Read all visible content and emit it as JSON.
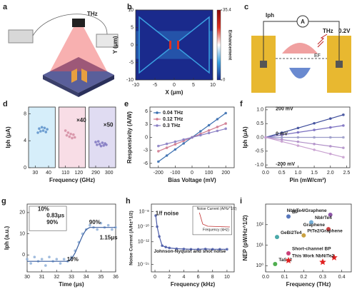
{
  "panels": {
    "a": {
      "label": "a",
      "texts": [
        "THz"
      ]
    },
    "c": {
      "label": "c",
      "texts": [
        "Iph",
        "A",
        "THz",
        "0.2V",
        "EF"
      ]
    }
  },
  "chart_data": [
    {
      "label": "b",
      "type": "heatmap",
      "xlabel": "X (μm)",
      "ylabel": "Y (μm)",
      "xlim": [
        -10,
        10
      ],
      "ylim": [
        -10,
        10
      ],
      "xticks": [
        -10,
        -5,
        0,
        5,
        10
      ],
      "yticks": [
        -10,
        -5,
        0,
        5,
        10
      ],
      "clim": [
        0,
        35.4
      ],
      "cticks": [
        0,
        35.4
      ],
      "colorbar_label": "Enhancement",
      "colors": [
        "#1a2a8c",
        "#3aa0e0",
        "#ffffff",
        "#e03020",
        "#8a0a0a"
      ]
    },
    {
      "label": "d",
      "type": "scatter",
      "xlabel": "Frequency (GHz)",
      "ylabel": "Iph (μA)",
      "xlim": [
        [
          25,
          45
        ],
        [
          105,
          125
        ],
        [
          285,
          305
        ]
      ],
      "xticks": [
        30,
        40,
        110,
        120,
        290,
        300
      ],
      "ylim": [
        0,
        9
      ],
      "yticks": [
        0,
        4,
        8
      ],
      "regions": [
        "#d6eefa",
        "#f8dde6",
        "#e0dcf2"
      ],
      "annotations": [
        "×40",
        "×50"
      ],
      "series": [
        {
          "color": "#5b8fc9",
          "x": [
            32,
            33,
            34,
            35,
            36,
            37,
            38,
            39
          ],
          "values": [
            5.2,
            5.8,
            5.4,
            6.0,
            5.5,
            5.9,
            5.3,
            5.7
          ]
        },
        {
          "color": "#d48ba0",
          "x": [
            110,
            111,
            112,
            113,
            114,
            115,
            116,
            117
          ],
          "values": [
            5.5,
            4.8,
            5.2,
            4.6,
            5.0,
            4.4,
            4.9,
            4.5
          ]
        },
        {
          "color": "#7c74c0",
          "x": [
            290,
            291,
            292,
            293,
            294,
            295,
            296,
            297,
            298
          ],
          "values": [
            3.8,
            3.4,
            3.9,
            3.5,
            3.2,
            3.7,
            3.3,
            3.6,
            3.4
          ]
        }
      ]
    },
    {
      "label": "e",
      "type": "line",
      "xlabel": "Bias Voltage (mV)",
      "ylabel": "Responsivity (A/W)",
      "xlim": [
        -250,
        250
      ],
      "xticks": [
        -200,
        -100,
        0,
        100,
        200
      ],
      "ylim": [
        -7,
        7
      ],
      "yticks": [
        -6,
        -3,
        0,
        3,
        6
      ],
      "legend": "upper left",
      "x": [
        -200,
        -150,
        -100,
        -50,
        0,
        50,
        100,
        150,
        200
      ],
      "series": [
        {
          "name": "0.04 THz",
          "color": "#3a6fb0",
          "mode": "lines+markers",
          "values": [
            -5.6,
            -4.2,
            -2.8,
            -1.4,
            0,
            1.4,
            2.8,
            4.2,
            5.6
          ]
        },
        {
          "name": "0.12 THz",
          "color": "#d07a8f",
          "mode": "lines+markers",
          "values": [
            -3.2,
            -2.4,
            -1.6,
            -0.8,
            0,
            0.8,
            1.6,
            2.4,
            3.2
          ]
        },
        {
          "name": "0.3  THz",
          "color": "#8a7fc4",
          "mode": "lines+markers",
          "values": [
            -2,
            -1.5,
            -1,
            -0.5,
            0,
            0.5,
            1,
            1.5,
            2
          ]
        }
      ]
    },
    {
      "label": "f",
      "type": "line",
      "xlabel": "Pin (mW/cm²)",
      "ylabel": "Iph (μA)",
      "xlim": [
        0,
        2.6
      ],
      "xticks": [
        {
          "value": 0,
          "label": "0.0"
        },
        0.5,
        {
          "value": 1,
          "label": "1.0"
        },
        1.5,
        {
          "value": 2,
          "label": "2.0"
        },
        2.5
      ],
      "ylim": [
        -1.1,
        1.1
      ],
      "yticks": [
        {
          "value": -1,
          "label": "-1.0"
        },
        -0.5,
        {
          "value": 0,
          "label": "0.0"
        },
        0.5,
        {
          "value": 1,
          "label": "1.0"
        }
      ],
      "legend": "inline",
      "x": [
        0,
        0.5,
        1,
        1.5,
        2,
        2.4
      ],
      "series": [
        {
          "name": "200 mV",
          "color": "#3b4a9a",
          "mode": "lines+markers",
          "values": [
            0,
            0.17,
            0.34,
            0.51,
            0.68,
            0.82
          ]
        },
        {
          "color": "#7a6fc0",
          "mode": "lines+markers",
          "values": [
            0,
            0.09,
            0.18,
            0.27,
            0.36,
            0.43
          ]
        },
        {
          "name": "0 mV",
          "color": "#9a9ac8",
          "mode": "lines+markers",
          "values": [
            0,
            0,
            0,
            0,
            0,
            0
          ]
        },
        {
          "color": "#b08fc8",
          "mode": "lines+markers",
          "values": [
            0,
            -0.08,
            -0.16,
            -0.24,
            -0.32,
            -0.38
          ]
        },
        {
          "name": "-200 mV",
          "color": "#c8a0d0",
          "mode": "lines+markers",
          "values": [
            0,
            -0.15,
            -0.3,
            -0.45,
            -0.6,
            -0.72
          ]
        }
      ]
    },
    {
      "label": "g",
      "type": "line",
      "xlabel": "Time (μs)",
      "ylabel": "Iph (a.u.)",
      "xlim": [
        30,
        36
      ],
      "xticks": [
        30,
        31,
        32,
        33,
        34,
        35,
        36
      ],
      "ylim": [
        -8,
        24
      ],
      "yticks": [
        0,
        10,
        20
      ],
      "annotations": [
        "90%",
        "10%",
        "1.15μs",
        "10%",
        "0.83μs",
        "90%"
      ],
      "x": [
        30,
        30.25,
        30.5,
        30.75,
        31,
        31.25,
        31.5,
        31.75,
        32,
        32.25,
        32.5,
        32.75,
        33,
        33.25,
        33.5,
        33.75,
        34,
        34.25,
        34.5,
        34.75,
        35,
        35.25,
        35.5,
        35.75,
        36
      ],
      "series": [
        {
          "color": "#8fb0d8",
          "mode": "markers",
          "values": [
            -2,
            -4,
            -1,
            -3,
            -2,
            -5,
            -1,
            -3,
            -2,
            -4,
            -2,
            -3,
            -1,
            2,
            6,
            10,
            12,
            14,
            13,
            12,
            15,
            13,
            14,
            12,
            13
          ]
        },
        {
          "color": "#3a5fa0",
          "mode": "lines",
          "values": [
            -3,
            -3,
            -3,
            -3,
            -3,
            -3,
            -3,
            -3,
            -3,
            -3,
            -3,
            -3,
            -2,
            1,
            5,
            9,
            12,
            13,
            13,
            13,
            13,
            13,
            13,
            13,
            13
          ]
        }
      ]
    },
    {
      "label": "h",
      "type": "line",
      "xlabel": "Frequency (kHz)",
      "ylabel": "Noise Current (A/Hz^1/2)",
      "xlim": [
        -0.5,
        11
      ],
      "xticks": [
        0,
        2,
        4,
        6,
        8,
        10
      ],
      "ylog": true,
      "ylim": [
        1e-16,
        1e-07
      ],
      "yticks": [
        {
          "value": 1e-15,
          "label": "10⁻¹⁵"
        },
        {
          "value": 1e-12,
          "label": "10⁻¹²"
        },
        {
          "value": 1e-10,
          "label": "10⁻¹⁰"
        },
        {
          "value": 1e-08,
          "label": "10⁻⁸"
        }
      ],
      "annotations": [
        "1/f noise",
        "Johnson-Nyquist and shot noise",
        "Noise Current (A/Hz^1/2)",
        "Frequency (kHz)"
      ],
      "x": [
        0.1,
        0.3,
        0.6,
        1,
        1.5,
        2,
        3,
        4,
        5,
        6,
        7,
        8,
        9,
        10
      ],
      "series": [
        {
          "color": "#4a5aa8",
          "mode": "lines+markers",
          "values": [
            3e-09,
            1e-10,
            5e-12,
            3e-13,
            2e-13,
            1.5e-13,
            1.2e-13,
            1.1e-13,
            1e-13,
            1e-13,
            1.1e-13,
            1e-13,
            1e-13,
            1e-13
          ]
        }
      ]
    },
    {
      "label": "i",
      "type": "scatter",
      "xlabel": "Frequency (THz)",
      "ylabel": "NEP (pW/Hz^1/2)",
      "xlim": [
        0,
        0.45
      ],
      "xticks": [
        {
          "value": 0,
          "label": "0.0"
        },
        0.1,
        0.2,
        0.3,
        0.4
      ],
      "ylog": true,
      "ylim": [
        0.5,
        1000
      ],
      "yticks": [
        {
          "value": 1,
          "label": "10⁰"
        },
        {
          "value": 10,
          "label": "10¹"
        },
        {
          "value": 100,
          "label": "10²"
        }
      ],
      "series": [
        {
          "name": "BP",
          "color": "#3a5fb0",
          "x": [
            0.12
          ],
          "values": [
            250
          ]
        },
        {
          "name": "NbIrTe4/Graphene",
          "color": "#7a3a9a",
          "x": [
            0.34
          ],
          "values": [
            300
          ]
        },
        {
          "name": "NbIrTe4",
          "color": "#5aa0d0",
          "x": [
            0.24
          ],
          "values": [
            130
          ]
        },
        {
          "name": "Graphene",
          "color": "#c02020",
          "x": [
            0.33
          ],
          "values": [
            60
          ]
        },
        {
          "name": "GeBi2Te4",
          "color": "#2a9a9a",
          "x": [
            0.06
          ],
          "values": [
            25
          ]
        },
        {
          "name": "PtTe2/Graphene",
          "color": "#c09020",
          "x": [
            0.2
          ],
          "values": [
            30
          ]
        },
        {
          "name": "Short-channel BP",
          "color": "#c02060",
          "x": [
            0.12
          ],
          "values": [
            4
          ]
        },
        {
          "name": "TaSe2",
          "color": "#30a030",
          "x": [
            0.05
          ],
          "values": [
            1.2
          ]
        },
        {
          "name": "This Work NbNiTe2",
          "color": "#e02020",
          "marker": "star",
          "x": [
            0.12,
            0.3,
            0.36
          ],
          "values": [
            1.8,
            1.5,
            2.5
          ]
        }
      ]
    }
  ]
}
